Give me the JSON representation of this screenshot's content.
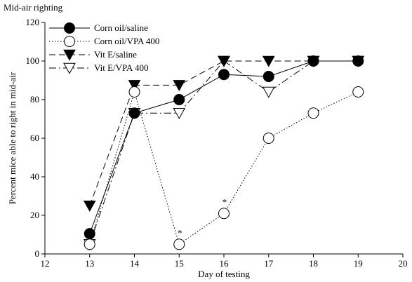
{
  "chart_data": {
    "type": "line",
    "title": "Mid-air righting",
    "xlabel": "Day of testing",
    "ylabel": "Percent mice able to right in mid-air",
    "xlim": [
      12,
      20
    ],
    "ylim": [
      0,
      120
    ],
    "xticks": [
      12,
      13,
      14,
      15,
      16,
      17,
      18,
      19,
      20
    ],
    "yticks": [
      0,
      20,
      40,
      60,
      80,
      100,
      120
    ],
    "grid": false,
    "legend_position": "top-left",
    "series": [
      {
        "name": "Corn oil/saline",
        "marker": "filled-circle",
        "line_style": "solid",
        "color": "#000000",
        "x": [
          13,
          14,
          15,
          16,
          17,
          18,
          19
        ],
        "y": [
          10.5,
          73,
          80,
          93,
          92,
          100,
          100
        ]
      },
      {
        "name": "Corn oil/VPA 400",
        "marker": "open-circle",
        "line_style": "dotted",
        "color": "#000000",
        "x": [
          13,
          14,
          15,
          16,
          17,
          18,
          19
        ],
        "y": [
          5,
          84,
          5,
          21,
          60,
          73,
          84
        ]
      },
      {
        "name": "Vit E/saline",
        "marker": "filled-triangle-down",
        "line_style": "dashed",
        "color": "#000000",
        "x": [
          13,
          14,
          15,
          16,
          17,
          18,
          19
        ],
        "y": [
          25,
          87.5,
          87.5,
          100,
          100,
          100,
          100
        ]
      },
      {
        "name": "Vit E/VPA 400",
        "marker": "open-triangle-down",
        "line_style": "dash-dot",
        "color": "#000000",
        "x": [
          13,
          14,
          15,
          16,
          17,
          18,
          19
        ],
        "y": [
          5,
          73,
          73,
          100,
          84,
          100,
          100
        ]
      }
    ],
    "annotations": [
      {
        "text": "*",
        "x": 15,
        "y": 5
      },
      {
        "text": "*",
        "x": 16,
        "y": 21
      }
    ]
  }
}
